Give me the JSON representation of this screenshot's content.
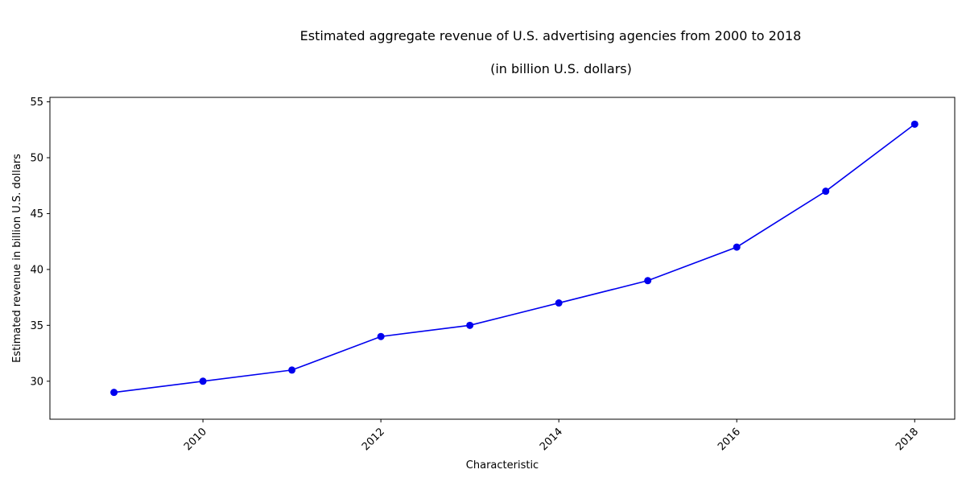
{
  "chart_data": {
    "type": "line",
    "title": "Estimated aggregate revenue of U.S. advertising agencies from 2000 to 2018",
    "subtitle": "(in billion U.S. dollars)",
    "xlabel": "Characteristic",
    "ylabel": "Estimated revenue in billion U.S. dollars",
    "x": [
      2009,
      2010,
      2011,
      2012,
      2013,
      2014,
      2015,
      2016,
      2017,
      2018
    ],
    "series": [
      {
        "values": [
          29,
          30,
          31,
          34,
          35,
          37,
          39,
          42,
          47,
          53
        ],
        "color": "#0000ee"
      }
    ],
    "xlim": [
      2008.28,
      2018.45
    ],
    "ylim": [
      26.6,
      55.4
    ],
    "xticks": [
      "2010",
      "2012",
      "2014",
      "2016",
      "2018"
    ],
    "yticks": [
      "30",
      "35",
      "40",
      "45",
      "50",
      "55"
    ],
    "grid": false,
    "legend": "none"
  }
}
